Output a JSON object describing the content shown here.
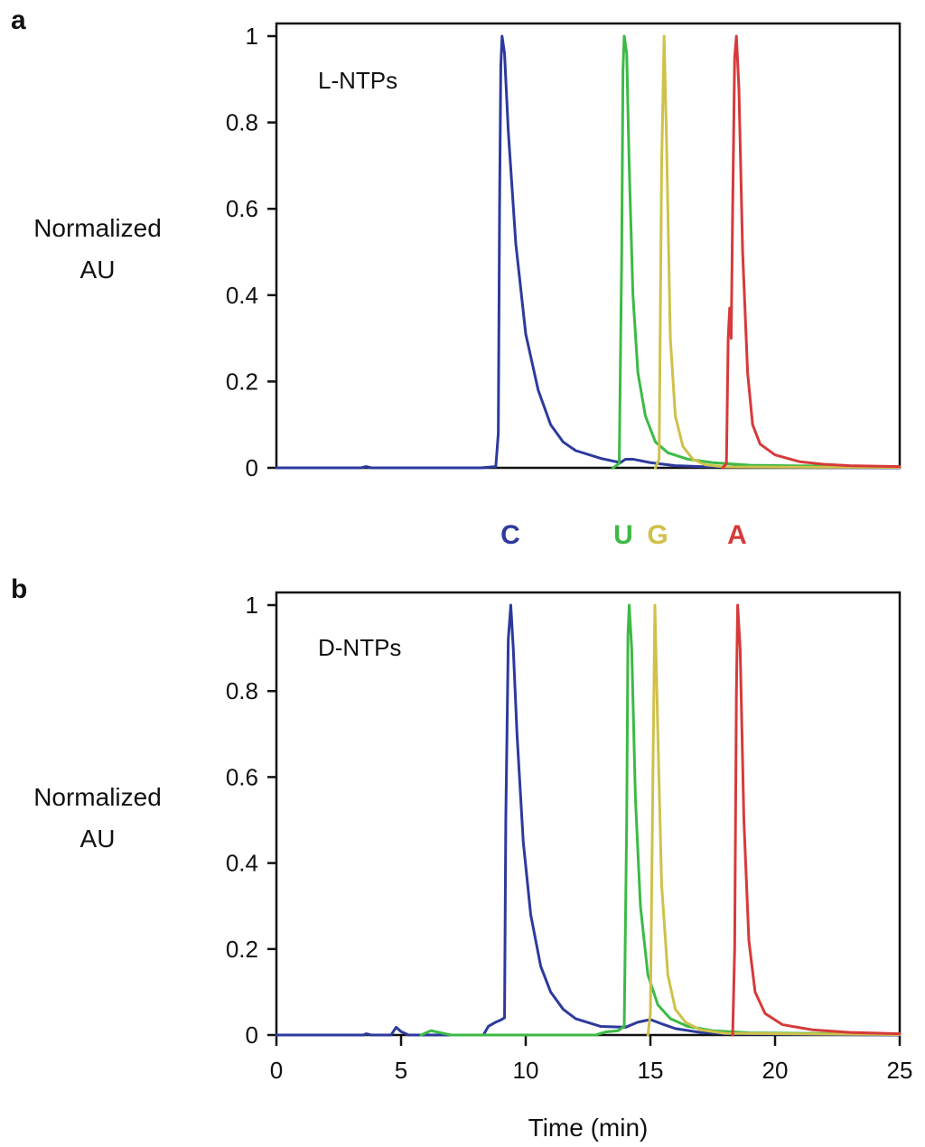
{
  "figure": {
    "colors": {
      "C": "#2d3a9c",
      "U": "#3cba45",
      "G": "#cfc14a",
      "A": "#d63a3a",
      "axis": "#111111"
    },
    "peak_labels": [
      {
        "text": "C",
        "series": "C"
      },
      {
        "text": "U",
        "series": "U"
      },
      {
        "text": "G",
        "series": "G"
      },
      {
        "text": "A",
        "series": "A"
      }
    ]
  },
  "chart_data": [
    {
      "type": "line",
      "panel_label": "a",
      "inset_label": "L-NTPs",
      "title": "",
      "xlabel": "",
      "ylabel": "Normalized AU",
      "ylabel_lines": [
        "Normalized",
        "AU"
      ],
      "xlim": [
        0,
        25
      ],
      "ylim": [
        0,
        1
      ],
      "yticks": [
        "0",
        "0.2",
        "0.4",
        "0.6",
        "0.8",
        "1"
      ],
      "ytick_values": [
        0,
        0.2,
        0.4,
        0.6,
        0.8,
        1
      ],
      "xticks": [],
      "grid": false,
      "series": [
        {
          "key": "C",
          "values": [
            [
              0,
              0
            ],
            [
              3.4,
              0
            ],
            [
              3.6,
              0.003
            ],
            [
              3.8,
              0
            ],
            [
              8.2,
              0
            ],
            [
              8.8,
              0.003
            ],
            [
              8.9,
              0.08
            ],
            [
              8.95,
              0.6
            ],
            [
              9.0,
              0.93
            ],
            [
              9.05,
              1.0
            ],
            [
              9.15,
              0.96
            ],
            [
              9.3,
              0.78
            ],
            [
              9.6,
              0.52
            ],
            [
              10.0,
              0.31
            ],
            [
              10.5,
              0.18
            ],
            [
              11.0,
              0.1
            ],
            [
              11.5,
              0.06
            ],
            [
              12.0,
              0.04
            ],
            [
              13.0,
              0.022
            ],
            [
              13.8,
              0.012
            ],
            [
              14.0,
              0.02
            ],
            [
              14.3,
              0.02
            ],
            [
              15.0,
              0.012
            ],
            [
              16.0,
              0.005
            ],
            [
              17.0,
              0.003
            ],
            [
              18.0,
              0.002
            ],
            [
              25.0,
              0
            ]
          ]
        },
        {
          "key": "U",
          "values": [
            [
              13.5,
              0
            ],
            [
              13.75,
              0.01
            ],
            [
              13.85,
              0.5
            ],
            [
              13.9,
              0.92
            ],
            [
              13.95,
              1.0
            ],
            [
              14.05,
              0.96
            ],
            [
              14.15,
              0.7
            ],
            [
              14.3,
              0.4
            ],
            [
              14.5,
              0.22
            ],
            [
              14.8,
              0.12
            ],
            [
              15.2,
              0.06
            ],
            [
              15.7,
              0.035
            ],
            [
              16.5,
              0.02
            ],
            [
              17.5,
              0.012
            ],
            [
              19.0,
              0.006
            ],
            [
              25.0,
              0.002
            ]
          ]
        },
        {
          "key": "G",
          "values": [
            [
              15.2,
              0
            ],
            [
              15.35,
              0.02
            ],
            [
              15.45,
              0.7
            ],
            [
              15.55,
              1.0
            ],
            [
              15.65,
              0.75
            ],
            [
              15.8,
              0.3
            ],
            [
              16.0,
              0.12
            ],
            [
              16.3,
              0.05
            ],
            [
              16.7,
              0.02
            ],
            [
              17.2,
              0.007
            ],
            [
              18.0,
              0.002
            ],
            [
              25.0,
              0.001
            ]
          ]
        },
        {
          "key": "A",
          "values": [
            [
              17.9,
              0
            ],
            [
              18.05,
              0.01
            ],
            [
              18.12,
              0.3
            ],
            [
              18.18,
              0.37
            ],
            [
              18.24,
              0.3
            ],
            [
              18.3,
              0.6
            ],
            [
              18.38,
              0.95
            ],
            [
              18.45,
              1.0
            ],
            [
              18.55,
              0.88
            ],
            [
              18.7,
              0.5
            ],
            [
              18.9,
              0.22
            ],
            [
              19.1,
              0.1
            ],
            [
              19.4,
              0.055
            ],
            [
              20.0,
              0.03
            ],
            [
              21.0,
              0.014
            ],
            [
              22.0,
              0.008
            ],
            [
              23.0,
              0.005
            ],
            [
              25.0,
              0.003
            ]
          ]
        }
      ]
    },
    {
      "type": "line",
      "panel_label": "b",
      "inset_label": "D-NTPs",
      "title": "",
      "xlabel": "Time (min)",
      "ylabel": "Normalized AU",
      "ylabel_lines": [
        "Normalized",
        "AU"
      ],
      "xlim": [
        0,
        25
      ],
      "ylim": [
        0,
        1
      ],
      "yticks": [
        "0",
        "0.2",
        "0.4",
        "0.6",
        "0.8",
        "1"
      ],
      "ytick_values": [
        0,
        0.2,
        0.4,
        0.6,
        0.8,
        1
      ],
      "xticks": [
        "0",
        "5",
        "10",
        "15",
        "20",
        "25"
      ],
      "xtick_values": [
        0,
        5,
        10,
        15,
        20,
        25
      ],
      "grid": false,
      "series": [
        {
          "key": "C",
          "values": [
            [
              0,
              0
            ],
            [
              3.5,
              0
            ],
            [
              3.6,
              0.003
            ],
            [
              3.8,
              0
            ],
            [
              4.6,
              0
            ],
            [
              4.8,
              0.018
            ],
            [
              5.0,
              0.008
            ],
            [
              5.3,
              0
            ],
            [
              8.3,
              0
            ],
            [
              8.5,
              0.02
            ],
            [
              8.8,
              0.03
            ],
            [
              9.0,
              0.035
            ],
            [
              9.15,
              0.04
            ],
            [
              9.2,
              0.5
            ],
            [
              9.3,
              0.92
            ],
            [
              9.4,
              1.0
            ],
            [
              9.5,
              0.9
            ],
            [
              9.65,
              0.7
            ],
            [
              9.9,
              0.45
            ],
            [
              10.2,
              0.28
            ],
            [
              10.6,
              0.16
            ],
            [
              11.0,
              0.1
            ],
            [
              11.5,
              0.06
            ],
            [
              12.0,
              0.038
            ],
            [
              13.0,
              0.02
            ],
            [
              14.0,
              0.018
            ],
            [
              14.5,
              0.03
            ],
            [
              15.0,
              0.036
            ],
            [
              15.5,
              0.025
            ],
            [
              16.0,
              0.015
            ],
            [
              17.0,
              0.006
            ],
            [
              18.0,
              0.003
            ],
            [
              25.0,
              0
            ]
          ]
        },
        {
          "key": "U",
          "values": [
            [
              5.8,
              0
            ],
            [
              6.2,
              0.01
            ],
            [
              6.6,
              0.005
            ],
            [
              7.0,
              0
            ],
            [
              12.8,
              0
            ],
            [
              13.2,
              0.007
            ],
            [
              13.7,
              0.01
            ],
            [
              13.95,
              0.02
            ],
            [
              14.05,
              0.5
            ],
            [
              14.1,
              0.93
            ],
            [
              14.15,
              1.0
            ],
            [
              14.25,
              0.9
            ],
            [
              14.4,
              0.55
            ],
            [
              14.6,
              0.3
            ],
            [
              14.9,
              0.14
            ],
            [
              15.3,
              0.07
            ],
            [
              15.8,
              0.038
            ],
            [
              16.5,
              0.02
            ],
            [
              17.5,
              0.01
            ],
            [
              19.0,
              0.005
            ],
            [
              25.0,
              0.002
            ]
          ]
        },
        {
          "key": "G",
          "values": [
            [
              14.9,
              0
            ],
            [
              15.0,
              0.05
            ],
            [
              15.1,
              0.6
            ],
            [
              15.18,
              1.0
            ],
            [
              15.3,
              0.7
            ],
            [
              15.45,
              0.35
            ],
            [
              15.7,
              0.14
            ],
            [
              16.0,
              0.06
            ],
            [
              16.4,
              0.03
            ],
            [
              17.0,
              0.012
            ],
            [
              18.0,
              0.004
            ],
            [
              25.0,
              0.001
            ]
          ]
        },
        {
          "key": "A",
          "values": [
            [
              18.3,
              0
            ],
            [
              18.38,
              0.2
            ],
            [
              18.45,
              0.8
            ],
            [
              18.5,
              1.0
            ],
            [
              18.6,
              0.9
            ],
            [
              18.75,
              0.5
            ],
            [
              18.95,
              0.22
            ],
            [
              19.2,
              0.1
            ],
            [
              19.6,
              0.05
            ],
            [
              20.3,
              0.024
            ],
            [
              21.5,
              0.012
            ],
            [
              23.0,
              0.006
            ],
            [
              25.0,
              0.003
            ]
          ]
        }
      ]
    }
  ]
}
